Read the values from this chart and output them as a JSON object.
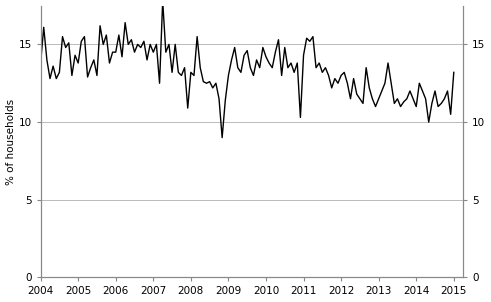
{
  "title": "",
  "ylabel_left": "% of households",
  "xlim": [
    2004.0,
    2015.25
  ],
  "ylim": [
    0,
    17.5
  ],
  "yticks": [
    0,
    5,
    10,
    15
  ],
  "grid_color": "#b0b0b0",
  "line_color": "#000000",
  "line_width": 1.0,
  "background_color": "#ffffff",
  "x_tick_labels": [
    "2004",
    "2005",
    "2006",
    "2007",
    "2008",
    "2009",
    "2010",
    "2011",
    "2012",
    "2013",
    "2014",
    "2015"
  ],
  "x_tick_positions": [
    2004,
    2005,
    2006,
    2007,
    2008,
    2009,
    2010,
    2011,
    2012,
    2013,
    2014,
    2015
  ],
  "data": [
    [
      2004.0,
      13.8
    ],
    [
      2004.083,
      16.1
    ],
    [
      2004.167,
      14.0
    ],
    [
      2004.25,
      12.8
    ],
    [
      2004.333,
      13.6
    ],
    [
      2004.417,
      12.8
    ],
    [
      2004.5,
      13.2
    ],
    [
      2004.583,
      15.5
    ],
    [
      2004.667,
      14.8
    ],
    [
      2004.75,
      15.1
    ],
    [
      2004.833,
      13.0
    ],
    [
      2004.917,
      14.3
    ],
    [
      2005.0,
      13.8
    ],
    [
      2005.083,
      15.2
    ],
    [
      2005.167,
      15.5
    ],
    [
      2005.25,
      12.9
    ],
    [
      2005.333,
      13.5
    ],
    [
      2005.417,
      14.0
    ],
    [
      2005.5,
      13.0
    ],
    [
      2005.583,
      16.2
    ],
    [
      2005.667,
      15.0
    ],
    [
      2005.75,
      15.6
    ],
    [
      2005.833,
      13.8
    ],
    [
      2005.917,
      14.5
    ],
    [
      2006.0,
      14.5
    ],
    [
      2006.083,
      15.6
    ],
    [
      2006.167,
      14.2
    ],
    [
      2006.25,
      16.4
    ],
    [
      2006.333,
      15.0
    ],
    [
      2006.417,
      15.3
    ],
    [
      2006.5,
      14.5
    ],
    [
      2006.583,
      15.0
    ],
    [
      2006.667,
      14.8
    ],
    [
      2006.75,
      15.2
    ],
    [
      2006.833,
      14.0
    ],
    [
      2006.917,
      15.0
    ],
    [
      2007.0,
      14.5
    ],
    [
      2007.083,
      15.0
    ],
    [
      2007.167,
      12.5
    ],
    [
      2007.25,
      17.8
    ],
    [
      2007.333,
      14.5
    ],
    [
      2007.417,
      15.0
    ],
    [
      2007.5,
      13.2
    ],
    [
      2007.583,
      15.0
    ],
    [
      2007.667,
      13.2
    ],
    [
      2007.75,
      13.0
    ],
    [
      2007.833,
      13.5
    ],
    [
      2007.917,
      10.9
    ],
    [
      2008.0,
      13.2
    ],
    [
      2008.083,
      13.0
    ],
    [
      2008.167,
      15.5
    ],
    [
      2008.25,
      13.5
    ],
    [
      2008.333,
      12.6
    ],
    [
      2008.417,
      12.5
    ],
    [
      2008.5,
      12.6
    ],
    [
      2008.583,
      12.2
    ],
    [
      2008.667,
      12.5
    ],
    [
      2008.75,
      11.5
    ],
    [
      2008.833,
      9.0
    ],
    [
      2008.917,
      11.4
    ],
    [
      2009.0,
      13.0
    ],
    [
      2009.083,
      14.0
    ],
    [
      2009.167,
      14.8
    ],
    [
      2009.25,
      13.5
    ],
    [
      2009.333,
      13.2
    ],
    [
      2009.417,
      14.3
    ],
    [
      2009.5,
      14.6
    ],
    [
      2009.583,
      13.5
    ],
    [
      2009.667,
      13.0
    ],
    [
      2009.75,
      14.0
    ],
    [
      2009.833,
      13.5
    ],
    [
      2009.917,
      14.8
    ],
    [
      2010.0,
      14.2
    ],
    [
      2010.083,
      13.8
    ],
    [
      2010.167,
      13.5
    ],
    [
      2010.25,
      14.5
    ],
    [
      2010.333,
      15.3
    ],
    [
      2010.417,
      13.0
    ],
    [
      2010.5,
      14.8
    ],
    [
      2010.583,
      13.5
    ],
    [
      2010.667,
      13.8
    ],
    [
      2010.75,
      13.2
    ],
    [
      2010.833,
      13.8
    ],
    [
      2010.917,
      10.3
    ],
    [
      2011.0,
      14.3
    ],
    [
      2011.083,
      15.4
    ],
    [
      2011.167,
      15.2
    ],
    [
      2011.25,
      15.5
    ],
    [
      2011.333,
      13.5
    ],
    [
      2011.417,
      13.8
    ],
    [
      2011.5,
      13.2
    ],
    [
      2011.583,
      13.5
    ],
    [
      2011.667,
      13.0
    ],
    [
      2011.75,
      12.2
    ],
    [
      2011.833,
      12.8
    ],
    [
      2011.917,
      12.5
    ],
    [
      2012.0,
      13.0
    ],
    [
      2012.083,
      13.2
    ],
    [
      2012.167,
      12.5
    ],
    [
      2012.25,
      11.5
    ],
    [
      2012.333,
      12.8
    ],
    [
      2012.417,
      11.8
    ],
    [
      2012.5,
      11.5
    ],
    [
      2012.583,
      11.2
    ],
    [
      2012.667,
      13.5
    ],
    [
      2012.75,
      12.2
    ],
    [
      2012.833,
      11.5
    ],
    [
      2012.917,
      11.0
    ],
    [
      2013.0,
      11.5
    ],
    [
      2013.083,
      12.0
    ],
    [
      2013.167,
      12.5
    ],
    [
      2013.25,
      13.8
    ],
    [
      2013.333,
      12.5
    ],
    [
      2013.417,
      11.2
    ],
    [
      2013.5,
      11.5
    ],
    [
      2013.583,
      11.0
    ],
    [
      2013.667,
      11.3
    ],
    [
      2013.75,
      11.5
    ],
    [
      2013.833,
      12.0
    ],
    [
      2013.917,
      11.5
    ],
    [
      2014.0,
      11.0
    ],
    [
      2014.083,
      12.5
    ],
    [
      2014.167,
      12.0
    ],
    [
      2014.25,
      11.5
    ],
    [
      2014.333,
      10.0
    ],
    [
      2014.417,
      11.2
    ],
    [
      2014.5,
      12.0
    ],
    [
      2014.583,
      11.0
    ],
    [
      2014.667,
      11.2
    ],
    [
      2014.75,
      11.5
    ],
    [
      2014.833,
      12.0
    ],
    [
      2014.917,
      10.5
    ],
    [
      2015.0,
      13.2
    ]
  ]
}
